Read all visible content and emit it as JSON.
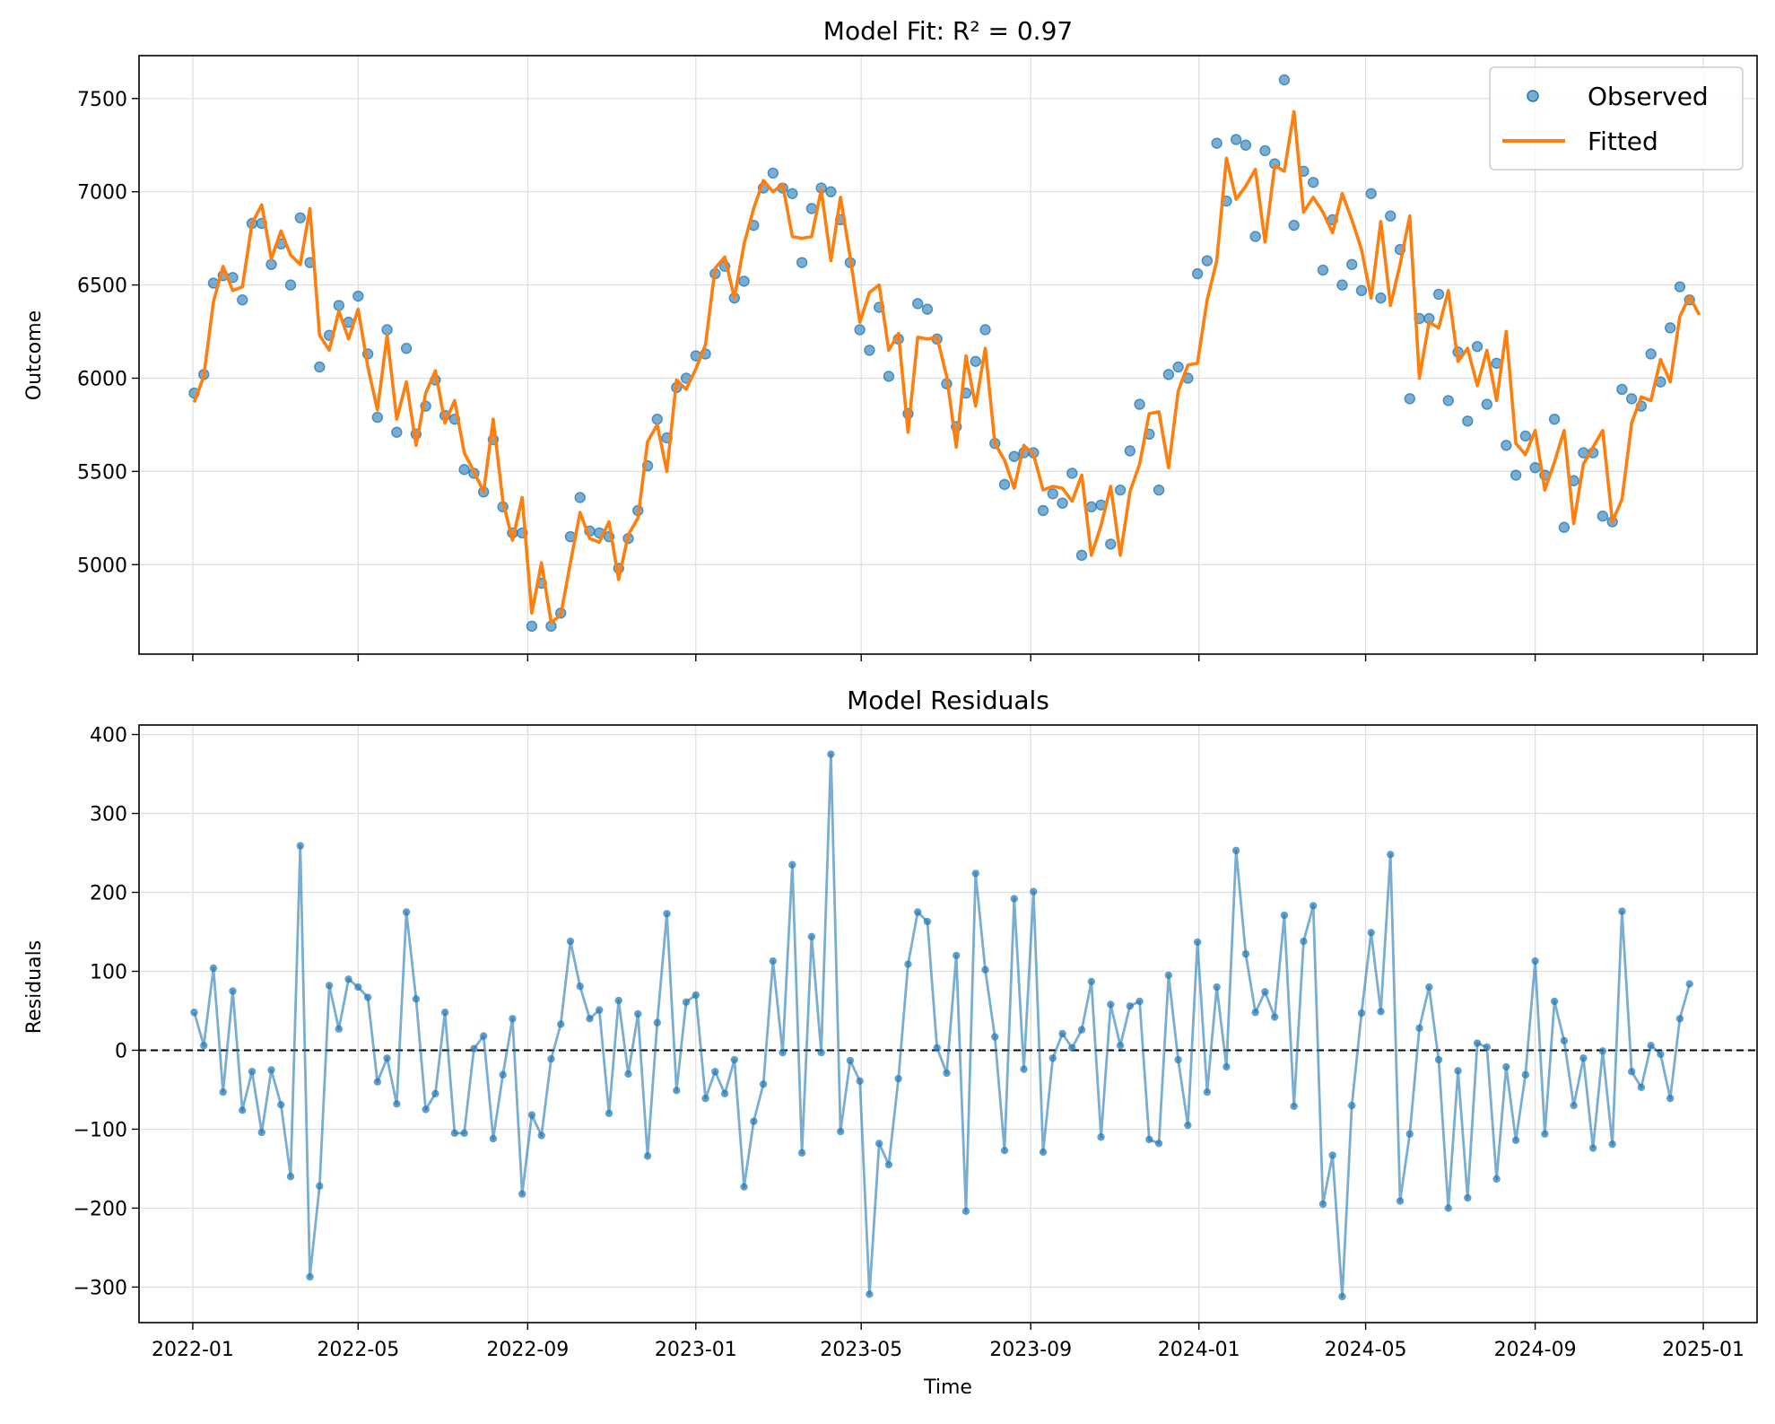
{
  "colors": {
    "observed": "#1f77b4",
    "fitted": "#ff7f0e",
    "residuals": "#1f77b4",
    "zero_line": "#000000",
    "grid": "#dddddd"
  },
  "chart_data": [
    {
      "type": "line",
      "title": "Model Fit: R² = 0.97",
      "xlabel": "",
      "ylabel": "Outcome",
      "x_start": "2022-01-02",
      "x_step_days": 7,
      "x_ticks": [
        "2022-01",
        "2022-05",
        "2022-09",
        "2023-01",
        "2023-05",
        "2023-09",
        "2024-01",
        "2024-05",
        "2024-09",
        "2025-01"
      ],
      "x_tick_labels_shown": false,
      "ylim": [
        4520,
        7730
      ],
      "y_ticks": [
        5000,
        5500,
        6000,
        6500,
        7000,
        7500
      ],
      "grid": true,
      "legend": "top-right",
      "series": [
        {
          "name": "Observed",
          "style": "scatter",
          "values": [
            5920,
            6020,
            6510,
            6550,
            6540,
            6420,
            6830,
            6830,
            6610,
            6720,
            6500,
            6860,
            6620,
            6060,
            6230,
            6390,
            6300,
            6440,
            6130,
            5790,
            6260,
            5710,
            6160,
            5700,
            5850,
            5990,
            5800,
            5780,
            5510,
            5490,
            5390,
            5670,
            5310,
            5170,
            5170,
            4670,
            4900,
            4670,
            4740,
            5150,
            5360,
            5180,
            5170,
            5150,
            4980,
            5140,
            5290,
            5530,
            5780,
            5680,
            5950,
            6000,
            6120,
            6130,
            6560,
            6600,
            6430,
            6520,
            6820,
            7020,
            7100,
            7020,
            6990,
            6620,
            6910,
            7020,
            7000,
            6850,
            6620,
            6260,
            6150,
            6380,
            6010,
            6210,
            5810,
            6400,
            6370,
            6210,
            5970,
            5740,
            5920,
            6090,
            6260,
            5650,
            5430,
            5580,
            5600,
            5600,
            5290,
            5380,
            5330,
            5490,
            5050,
            5310,
            5320,
            5110,
            5400,
            5610,
            5860,
            5700,
            5400,
            6020,
            6060,
            6000,
            6560,
            6630,
            7260,
            6950,
            7280,
            7250,
            6760,
            7220,
            7150,
            7600,
            6820,
            7110,
            7050,
            6580,
            6850,
            6500,
            6610,
            6470,
            6990,
            6430,
            6870,
            6690,
            5890,
            6320,
            6320,
            6450,
            5880,
            6140,
            5770,
            6170,
            5860,
            6080,
            5640,
            5480,
            5690,
            5520,
            5480,
            5780,
            5200,
            5450,
            5600,
            5600,
            5260,
            5230,
            5940,
            5890,
            5850,
            6130,
            5980,
            6270,
            6490,
            6420
          ]
        },
        {
          "name": "Fitted",
          "style": "line",
          "values": [
            5870,
            6010,
            6410,
            6600,
            6470,
            6490,
            6830,
            6930,
            6640,
            6790,
            6660,
            6610,
            6910,
            6230,
            6150,
            6360,
            6210,
            6370,
            6060,
            5830,
            6230,
            5780,
            5980,
            5640,
            5920,
            6040,
            5760,
            5880,
            5600,
            5500,
            5390,
            5780,
            5340,
            5130,
            5360,
            4740,
            5010,
            4690,
            4730,
            5010,
            5280,
            5140,
            5120,
            5230,
            4920,
            5160,
            5250,
            5660,
            5750,
            5500,
            5990,
            5940,
            6050,
            6180,
            6590,
            6650,
            6430,
            6720,
            6910,
            7060,
            7000,
            7040,
            6760,
            6750,
            6760,
            7010,
            6630,
            6970,
            6650,
            6300,
            6460,
            6500,
            6150,
            6240,
            5710,
            6220,
            6210,
            6220,
            6010,
            5630,
            6120,
            5850,
            6160,
            5650,
            5560,
            5410,
            5640,
            5590,
            5400,
            5420,
            5410,
            5340,
            5480,
            5050,
            5210,
            5420,
            5050,
            5390,
            5540,
            5810,
            5820,
            5520,
            5930,
            6070,
            6080,
            6420,
            6630,
            7180,
            6960,
            7030,
            7120,
            6730,
            7140,
            7110,
            7430,
            6890,
            6970,
            6890,
            6780,
            6990,
            6850,
            6690,
            6430,
            6840,
            6390,
            6610,
            6870,
            6000,
            6300,
            6270,
            6470,
            6090,
            6160,
            5960,
            6150,
            5880,
            6250,
            5650,
            5590,
            5720,
            5400,
            5550,
            5720,
            5220,
            5540,
            5630,
            5720,
            5230,
            5350,
            5760,
            5900,
            5880,
            6100,
            5980,
            6330,
            6440,
            6340
          ]
        }
      ]
    },
    {
      "type": "line",
      "title": "Model Residuals",
      "xlabel": "Time",
      "ylabel": "Residuals",
      "x_start": "2022-01-02",
      "x_step_days": 7,
      "x_ticks": [
        "2022-01",
        "2022-05",
        "2022-09",
        "2023-01",
        "2023-05",
        "2023-09",
        "2024-01",
        "2024-05",
        "2024-09",
        "2025-01"
      ],
      "ylim": [
        -345,
        412
      ],
      "y_ticks": [
        -300,
        -200,
        -100,
        0,
        100,
        200,
        300,
        400
      ],
      "y_tick_labels": [
        "−300",
        "−200",
        "−100",
        "0",
        "100",
        "200",
        "300",
        "400"
      ],
      "grid": true,
      "reference_line": 0,
      "series": [
        {
          "name": "",
          "style": "line+markers",
          "values": [
            48,
            6,
            104,
            -53,
            75,
            -76,
            -27,
            -104,
            -25,
            -69,
            -160,
            259,
            -287,
            -172,
            82,
            27,
            90,
            80,
            67,
            -40,
            -10,
            -68,
            175,
            65,
            -75,
            -55,
            48,
            -105,
            -105,
            2,
            18,
            -112,
            -31,
            40,
            -182,
            -82,
            -108,
            -11,
            33,
            138,
            81,
            40,
            51,
            -80,
            63,
            -30,
            46,
            -134,
            35,
            173,
            -51,
            61,
            70,
            -61,
            -27,
            -55,
            -12,
            -173,
            -90,
            -43,
            113,
            -3,
            235,
            -130,
            144,
            -3,
            375,
            -103,
            -13,
            -39,
            -309,
            -118,
            -145,
            -36,
            109,
            175,
            163,
            3,
            -29,
            120,
            -204,
            224,
            102,
            17,
            -127,
            192,
            -24,
            201,
            -129,
            -10,
            21,
            3,
            26,
            87,
            -110,
            58,
            6,
            56,
            62,
            -113,
            -118,
            95,
            -12,
            -95,
            137,
            -53,
            80,
            -21,
            253,
            122,
            48,
            74,
            42,
            171,
            -71,
            138,
            183,
            -195,
            -133,
            -312,
            -70,
            47,
            149,
            49,
            248,
            -191,
            -106,
            28,
            80,
            -12,
            -200,
            -26,
            -187,
            9,
            4,
            -163,
            -21,
            -114,
            -31,
            113,
            -106,
            62,
            12,
            -70,
            -10,
            -124,
            -1,
            -119,
            176,
            -27,
            -47,
            6,
            -5,
            -61,
            40,
            84
          ]
        }
      ]
    }
  ]
}
